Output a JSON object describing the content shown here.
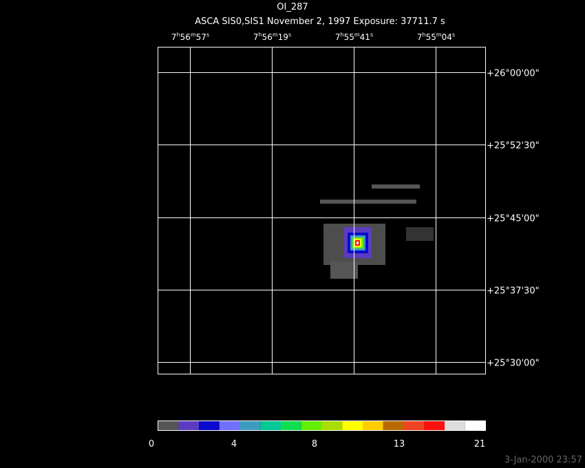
{
  "header": {
    "title": "OI_287",
    "subtitle": "ASCA SIS0,SIS1 November 2, 1997 Exposure: 37711.7 s"
  },
  "ra_labels": [
    [
      "7",
      "h",
      "56",
      "m",
      "57",
      "s"
    ],
    [
      "7",
      "h",
      "56",
      "m",
      "19",
      "s"
    ],
    [
      "7",
      "h",
      "55",
      "m",
      "41",
      "s"
    ],
    [
      "7",
      "h",
      "55",
      "m",
      "04",
      "s"
    ]
  ],
  "dec_labels": [
    "+26°00'00\"",
    "+25°52'30\"",
    "+25°45'00\"",
    "+25°37'30\"",
    "+25°30'00\""
  ],
  "colorbar": {
    "colors": [
      "#555555",
      "#5b3cc0",
      "#0a0acc",
      "#7070ff",
      "#3d9bc0",
      "#00c896",
      "#10dd50",
      "#66ee00",
      "#aadd00",
      "#ffff00",
      "#ffcc00",
      "#b86a00",
      "#ee4422",
      "#ff1010",
      "#dddddd",
      "#ffffff"
    ],
    "labels": [
      "0",
      "4",
      "8",
      "13",
      "21"
    ]
  },
  "timestamp": "3-Jan-2000 23:57"
}
